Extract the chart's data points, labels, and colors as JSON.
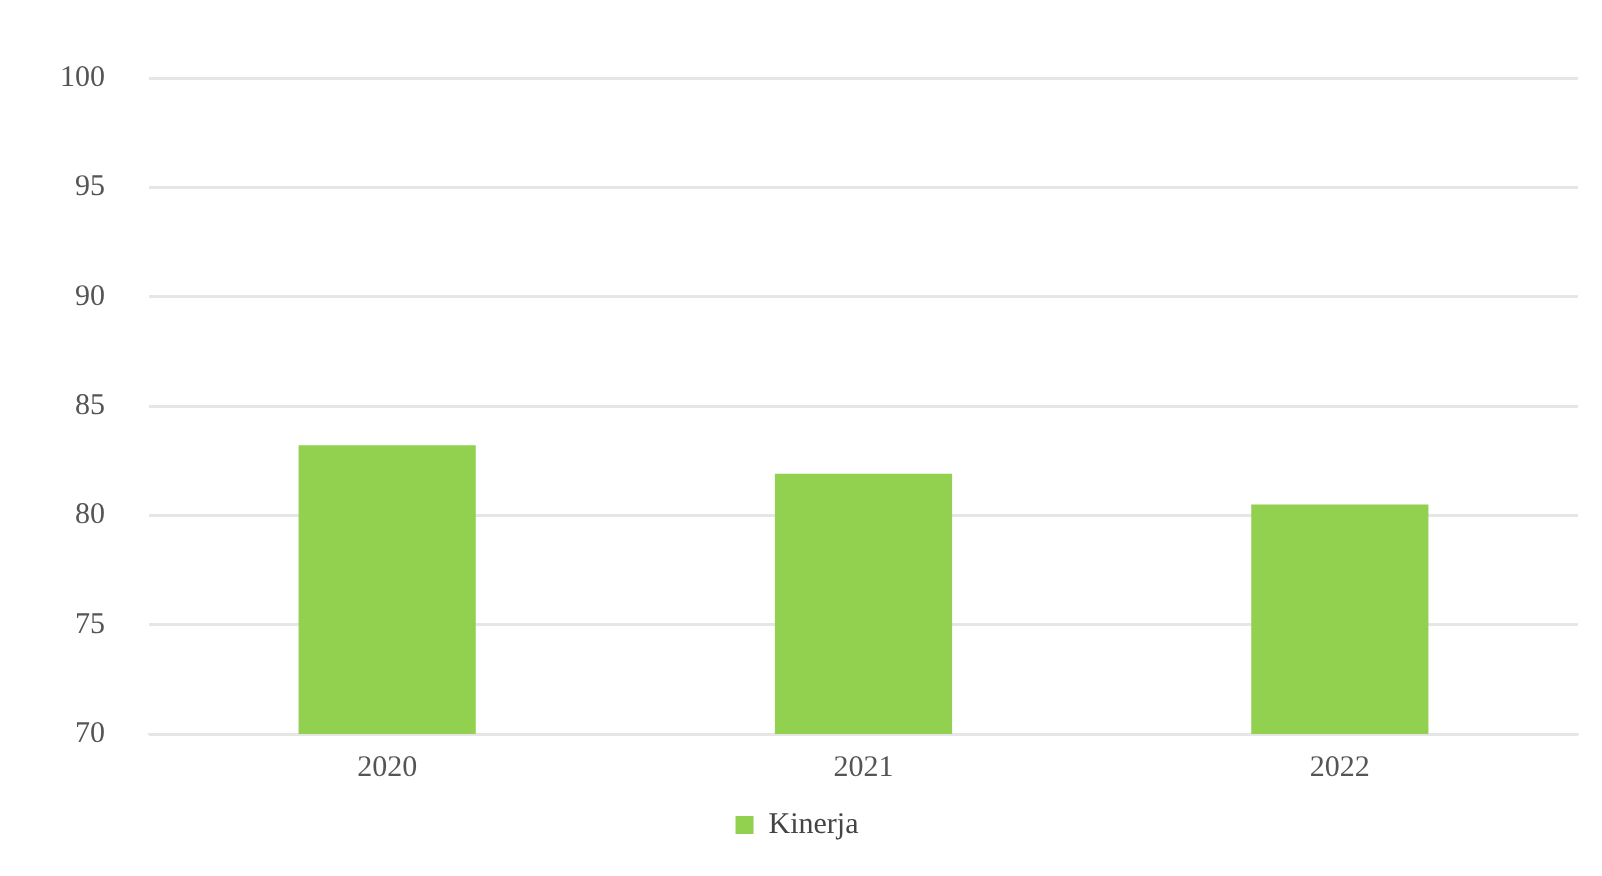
{
  "chart_data": {
    "type": "bar",
    "categories": [
      "2020",
      "2021",
      "2022"
    ],
    "series": [
      {
        "name": "Kinerja",
        "color": "#92d050",
        "values": [
          83.2,
          81.9,
          80.5
        ]
      }
    ],
    "ylim": [
      70,
      100
    ],
    "yticks": [
      70,
      75,
      80,
      85,
      90,
      95,
      100
    ],
    "grid": "y",
    "legend": "bottom"
  }
}
